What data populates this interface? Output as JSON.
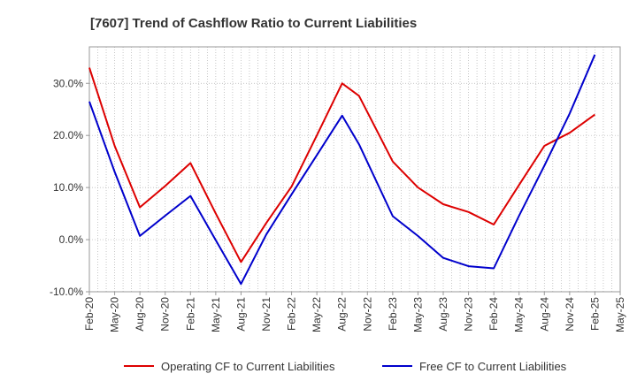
{
  "chart_data": {
    "type": "line",
    "title": "[7607]  Trend of Cashflow Ratio to Current Liabilities",
    "xlabel": "",
    "ylabel": "",
    "x_ticks": [
      "Feb-20",
      "May-20",
      "Aug-20",
      "Nov-20",
      "Feb-21",
      "May-21",
      "Aug-21",
      "Nov-21",
      "Feb-22",
      "May-22",
      "Aug-22",
      "Nov-22",
      "Feb-23",
      "May-23",
      "Aug-23",
      "Nov-23",
      "Feb-24",
      "May-24",
      "Aug-24",
      "Nov-24",
      "Feb-25",
      "May-25"
    ],
    "y_ticks": [
      "-10.0%",
      "0.0%",
      "10.0%",
      "20.0%",
      "30.0%"
    ],
    "y_tick_values": [
      -10,
      0,
      10,
      20,
      30
    ],
    "ylim": [
      -10,
      37
    ],
    "grid": "vertical dotted every month, horizontal dotted at y ticks",
    "legend_position": "bottom",
    "series": [
      {
        "name": "Operating CF to Current Liabilities",
        "color": "#dd0000",
        "x": [
          "Feb-20",
          "May-20",
          "Aug-20",
          "Nov-20",
          "Feb-21",
          "May-21",
          "Aug-21",
          "Nov-21",
          "Feb-22",
          "May-22",
          "Aug-22",
          "Oct-22",
          "Feb-23",
          "May-23",
          "Aug-23",
          "Nov-23",
          "Feb-24",
          "May-24",
          "Aug-24",
          "Nov-24",
          "Feb-25"
        ],
        "values": [
          33.0,
          18.0,
          6.2,
          10.3,
          14.7,
          5.0,
          -4.3,
          3.2,
          10.2,
          20.0,
          30.0,
          27.6,
          15.0,
          10.0,
          6.8,
          5.3,
          2.9,
          10.5,
          18.0,
          20.5,
          24.0
        ]
      },
      {
        "name": "Free CF to Current Liabilities",
        "color": "#0000cc",
        "x": [
          "Feb-20",
          "May-20",
          "Aug-20",
          "Nov-20",
          "Feb-21",
          "May-21",
          "Aug-21",
          "Nov-21",
          "Feb-22",
          "May-22",
          "Aug-22",
          "Oct-22",
          "Feb-23",
          "May-23",
          "Aug-23",
          "Nov-23",
          "Feb-24",
          "May-24",
          "Aug-24",
          "Nov-24",
          "Feb-25"
        ],
        "values": [
          26.5,
          13.0,
          0.7,
          4.6,
          8.4,
          -0.1,
          -8.5,
          1.0,
          8.7,
          16.2,
          23.8,
          18.3,
          4.5,
          0.7,
          -3.5,
          -5.1,
          -5.5,
          4.6,
          14.2,
          24.2,
          35.5
        ]
      }
    ]
  }
}
